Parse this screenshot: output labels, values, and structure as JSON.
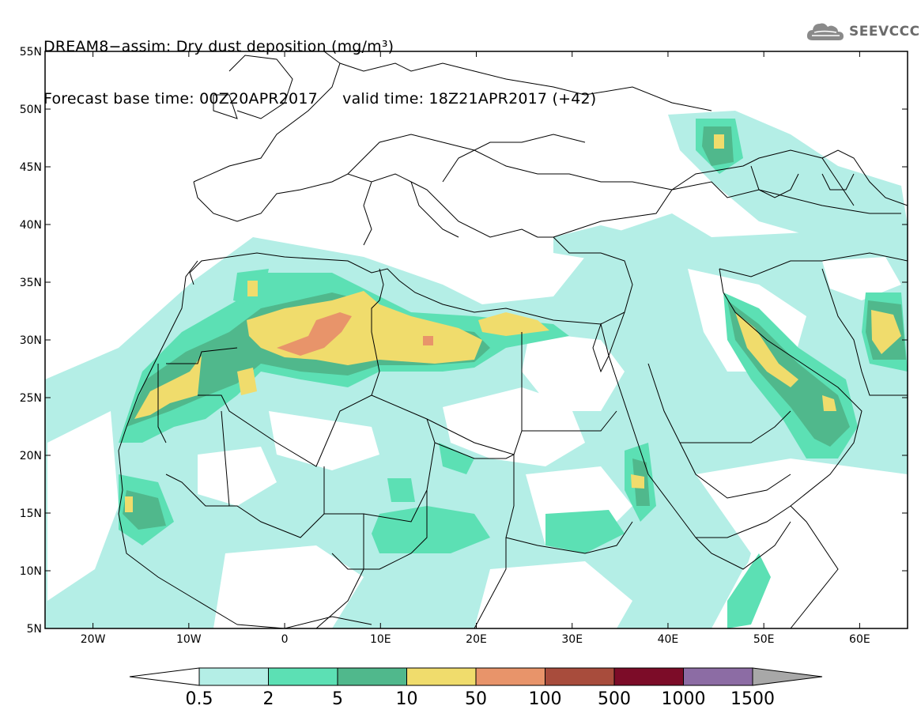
{
  "title": {
    "line1": "DREAM8−assim: Dry dust deposition (mg/m³)",
    "line2_base": "Forecast base time: 00Z20APR2017",
    "line2_valid": "valid time: 18Z21APR2017 (+42)"
  },
  "logo": {
    "text": "SEEVCCC",
    "icon": "cloud-icon"
  },
  "map": {
    "lon_range": [
      -25,
      65
    ],
    "lat_range": [
      5,
      55
    ],
    "lat_ticks": [
      {
        "lat": 55,
        "label": "55N"
      },
      {
        "lat": 50,
        "label": "50N"
      },
      {
        "lat": 45,
        "label": "45N"
      },
      {
        "lat": 40,
        "label": "40N"
      },
      {
        "lat": 35,
        "label": "35N"
      },
      {
        "lat": 30,
        "label": "30N"
      },
      {
        "lat": 25,
        "label": "25N"
      },
      {
        "lat": 20,
        "label": "20N"
      },
      {
        "lat": 15,
        "label": "15N"
      },
      {
        "lat": 10,
        "label": "10N"
      },
      {
        "lat": 5,
        "label": "5N"
      }
    ],
    "lon_ticks": [
      {
        "lon": -20,
        "label": "20W"
      },
      {
        "lon": -10,
        "label": "10W"
      },
      {
        "lon": 0,
        "label": "0"
      },
      {
        "lon": 10,
        "label": "10E"
      },
      {
        "lon": 20,
        "label": "20E"
      },
      {
        "lon": 30,
        "label": "30E"
      },
      {
        "lon": 40,
        "label": "40E"
      },
      {
        "lon": 50,
        "label": "50E"
      },
      {
        "lon": 60,
        "label": "60E"
      }
    ]
  },
  "colorbar": {
    "colors": [
      "#b4eee6",
      "#5ce0b4",
      "#50b88c",
      "#f0dc6c",
      "#e8946a",
      "#a84c3c",
      "#7c0c28",
      "#8c6ca4"
    ],
    "over_color": "#a8a8a8",
    "under_color": "#ffffff",
    "labels": [
      "0.5",
      "2",
      "5",
      "10",
      "50",
      "100",
      "500",
      "1000",
      "1500"
    ]
  }
}
